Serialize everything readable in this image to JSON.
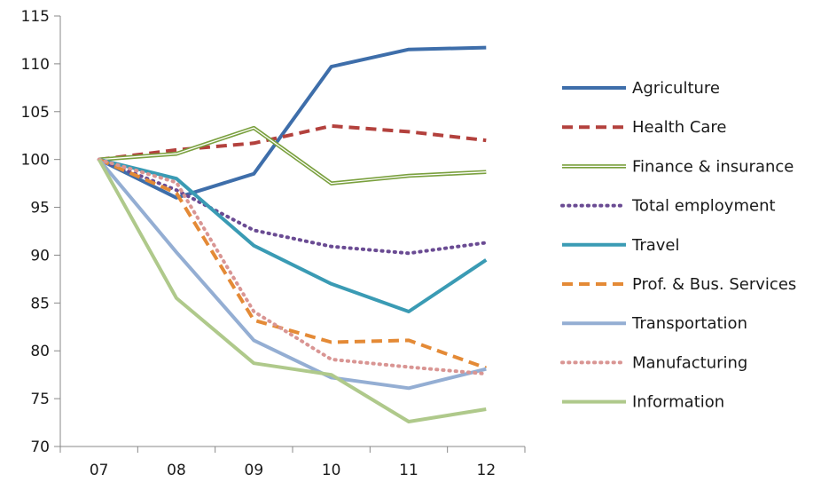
{
  "chart_data": {
    "type": "line",
    "title": "",
    "xlabel": "",
    "ylabel": "",
    "categories": [
      "07",
      "08",
      "09",
      "10",
      "11",
      "12"
    ],
    "ylim": [
      70,
      115
    ],
    "yticks": [
      70,
      75,
      80,
      85,
      90,
      95,
      100,
      105,
      110,
      115
    ],
    "grid": false,
    "legend_position": "right",
    "series": [
      {
        "name": "Agriculture",
        "values": [
          100,
          96,
          98.5,
          109.7,
          111.5,
          111.7
        ],
        "color": "#3e6eaa",
        "style": "solid"
      },
      {
        "name": "Health Care",
        "values": [
          100,
          101,
          101.7,
          103.5,
          102.9,
          102
        ],
        "color": "#b3413d",
        "style": "dashed"
      },
      {
        "name": "Finance & insurance",
        "values": [
          100,
          100.6,
          103.3,
          97.5,
          98.3,
          98.7
        ],
        "color": "#7aa03e",
        "style": "double"
      },
      {
        "name": "Total employment",
        "values": [
          100,
          96.8,
          92.6,
          90.9,
          90.2,
          91.3
        ],
        "color": "#6a4b93",
        "style": "dotted"
      },
      {
        "name": "Travel",
        "values": [
          100,
          98,
          91,
          87,
          84.1,
          89.5
        ],
        "color": "#3a9bb4",
        "style": "solid"
      },
      {
        "name": "Prof. & Bus. Services",
        "values": [
          100,
          96.5,
          83.2,
          80.9,
          81.1,
          78.2
        ],
        "color": "#e48a36",
        "style": "dashed"
      },
      {
        "name": "Transportation",
        "values": [
          100,
          90.3,
          81.1,
          77.2,
          76.1,
          78.1
        ],
        "color": "#94aed3",
        "style": "solid"
      },
      {
        "name": "Manufacturing",
        "values": [
          100,
          97.6,
          84.1,
          79.1,
          78.3,
          77.6
        ],
        "color": "#d99593",
        "style": "dotted"
      },
      {
        "name": "Information",
        "values": [
          100,
          85.5,
          78.7,
          77.5,
          72.6,
          73.9
        ],
        "color": "#afc98b",
        "style": "solid"
      }
    ]
  }
}
